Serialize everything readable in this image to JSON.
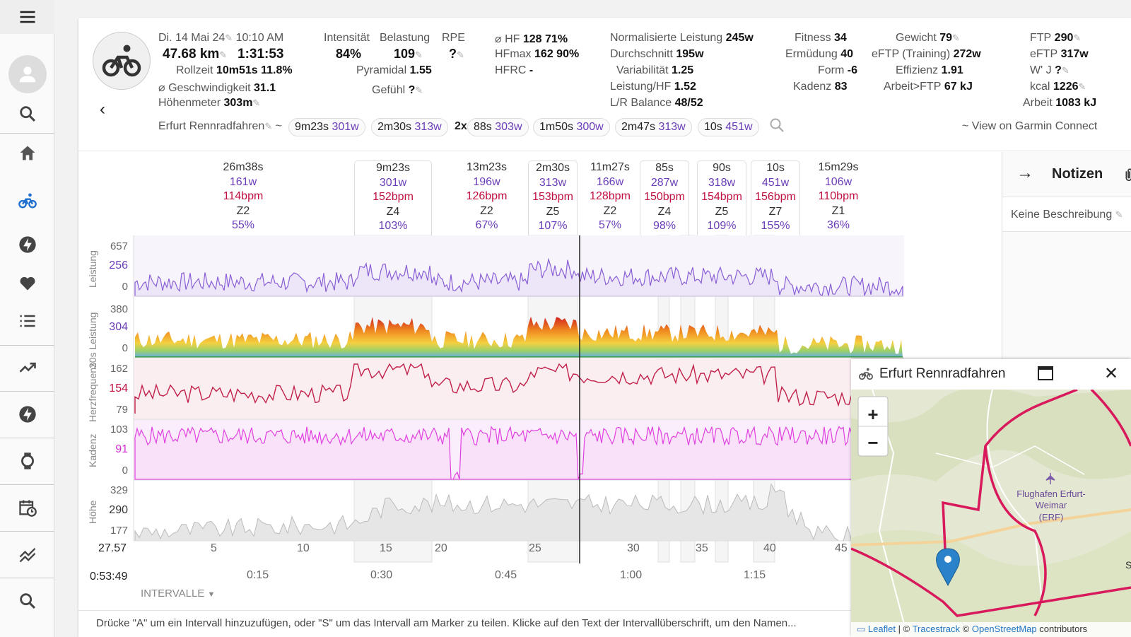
{
  "sidebar": {
    "items": [
      {
        "name": "menu-icon"
      },
      {
        "name": "avatar"
      },
      {
        "name": "search-icon"
      },
      {
        "name": "home-icon"
      },
      {
        "name": "bike-icon"
      },
      {
        "name": "bolt-icon"
      },
      {
        "name": "heart-icon"
      },
      {
        "name": "list-icon"
      },
      {
        "name": "trend-icon"
      },
      {
        "name": "bolt-icon"
      },
      {
        "name": "watch-icon"
      },
      {
        "name": "calendar-icon"
      },
      {
        "name": "compare-icon"
      },
      {
        "name": "search-icon"
      }
    ]
  },
  "activity": {
    "date": "Di. 14 Mai 24",
    "time": "10:10 AM",
    "distance": "47.68 km",
    "duration": "1:31:53",
    "rollzeit_label": "Rollzeit",
    "rollzeit": "10m51s",
    "rollzeit_pct": "11.8%",
    "speed_label": "⌀ Geschwindigkeit",
    "speed": "31.1",
    "elev_label": "Höhenmeter",
    "elev": "303m",
    "name": "Erfurt Rennradfahren"
  },
  "load": {
    "intensity_label": "Intensität",
    "intensity": "84%",
    "load_label": "Belastung",
    "load": "109",
    "rpe_label": "RPE",
    "rpe": "?",
    "pyramidal_label": "Pyramidal",
    "pyramidal": "1.55",
    "feel_label": "Gefühl",
    "feel": "?"
  },
  "hr": {
    "hf_label": "⌀ HF",
    "hf": "128",
    "hf_pct": "71%",
    "hfmax_label": "HFmax",
    "hfmax": "162",
    "hfmax_pct": "90%",
    "hfrc_label": "HFRC",
    "hfrc": "-"
  },
  "power": {
    "np_label": "Normalisierte Leistung",
    "np": "245w",
    "avg_label": "Durchschnitt",
    "avg": "195w",
    "var_label": "Variabilität",
    "var": "1.25",
    "phr_label": "Leistung/HF",
    "phr": "1.52",
    "lr_label": "L/R Balance",
    "lr": "48/52"
  },
  "fitness": {
    "fitness_label": "Fitness",
    "fitness": "34",
    "fatigue_label": "Ermüdung",
    "fatigue": "40",
    "form_label": "Form",
    "form": "-6",
    "cadence_label": "Kadenz",
    "cadence": "83"
  },
  "body": {
    "weight_label": "Gewicht",
    "weight": "79",
    "eftp_tr_label": "eFTP (Training)",
    "eftp_tr": "272w",
    "eff_label": "Effizienz",
    "eff": "1.91",
    "work_ftp_label": "Arbeit>FTP",
    "work_ftp": "67 kJ"
  },
  "ftp": {
    "ftp_label": "FTP",
    "ftp": "290",
    "eftp_label": "eFTP",
    "eftp": "317w",
    "wj_label": "W' J",
    "wj": "?",
    "kcal_label": "kcal",
    "kcal": "1226",
    "work_label": "Arbeit",
    "work": "1083 kJ"
  },
  "chips": {
    "tilde": "~",
    "c1_time": "9m23s",
    "c1_w": "301w",
    "c2_time": "2m30s",
    "c2_w": "313w",
    "rep": "2x",
    "c3_time": "88s",
    "c3_w": "303w",
    "c4_time": "1m50s",
    "c4_w": "300w",
    "c5_time": "2m47s",
    "c5_w": "313w",
    "c6_time": "10s",
    "c6_w": "451w",
    "garmin": "~ View on Garmin Connect"
  },
  "intervals": [
    {
      "time": "26m38s",
      "watts": "161w",
      "hr": "114bpm",
      "zone": "Z2",
      "pct": "55%"
    },
    {
      "time": "9m23s",
      "watts": "301w",
      "hr": "152bpm",
      "zone": "Z4",
      "pct": "103%"
    },
    {
      "time": "13m23s",
      "watts": "196w",
      "hr": "126bpm",
      "zone": "Z2",
      "pct": "67%"
    },
    {
      "time": "2m30s",
      "watts": "313w",
      "hr": "153bpm",
      "zone": "Z5",
      "pct": "107%"
    },
    {
      "time": "11m27s",
      "watts": "166w",
      "hr": "128bpm",
      "zone": "Z2",
      "pct": "57%"
    },
    {
      "time": "85s",
      "watts": "287w",
      "hr": "150bpm",
      "zone": "Z4",
      "pct": "98%"
    },
    {
      "time": "90s",
      "watts": "318w",
      "hr": "154bpm",
      "zone": "Z5",
      "pct": "109%"
    },
    {
      "time": "10s",
      "watts": "451w",
      "hr": "156bpm",
      "zone": "Z7",
      "pct": "155%"
    },
    {
      "time": "15m29s",
      "watts": "106w",
      "hr": "110bpm",
      "zone": "Z1",
      "pct": "36%"
    }
  ],
  "charts": {
    "power_label": "Leistung",
    "power_max": "657",
    "power_mid": "256",
    "power_min": "0",
    "p30_label": "30s Leistung",
    "p30_max": "380",
    "p30_mid": "304",
    "p30_min": "0",
    "hr_label": "Herzfrequenz",
    "hr_max": "162",
    "hr_mid": "154",
    "hr_min": "79",
    "cad_label": "Kadenz",
    "cad_max": "103",
    "cad_mid": "91",
    "cad_min": "0",
    "alt_label": "Höhe",
    "alt_max": "329",
    "alt_mid": "290",
    "alt_min": "177",
    "cursor_dist": "27.57",
    "cursor_time": "0:53:49",
    "dist_ticks": [
      "5",
      "10",
      "15",
      "20",
      "25",
      "30",
      "35",
      "40",
      "45"
    ],
    "time_ticks": [
      "0:15",
      "0:30",
      "0:45",
      "1:00",
      "1:15"
    ],
    "intervals_button": "INTERVALLE"
  },
  "notes": {
    "title": "Notizen",
    "desc": "Keine Beschreibung"
  },
  "map": {
    "title": "Erfurt Rennradfahren",
    "zoom_in": "+",
    "zoom_out": "−",
    "airport1": "Flughafen Erfurt-",
    "airport2": "Weimar",
    "airport3": "(ERF)",
    "edge_letter": "S",
    "attr_leaflet": "Leaflet",
    "attr_sep": "|",
    "attr_copy1": "©",
    "attr_tracestrack": "Tracestrack",
    "attr_copy2": "©",
    "attr_osm": "OpenStreetMap",
    "attr_contrib": "contributors"
  },
  "hint": "Drücke \"A\" um ein Intervall hinzuzufügen, oder \"S\" um das Intervall am Marker zu teilen. Klicke auf den Text der Intervallüberschrift, um den Namen..."
}
